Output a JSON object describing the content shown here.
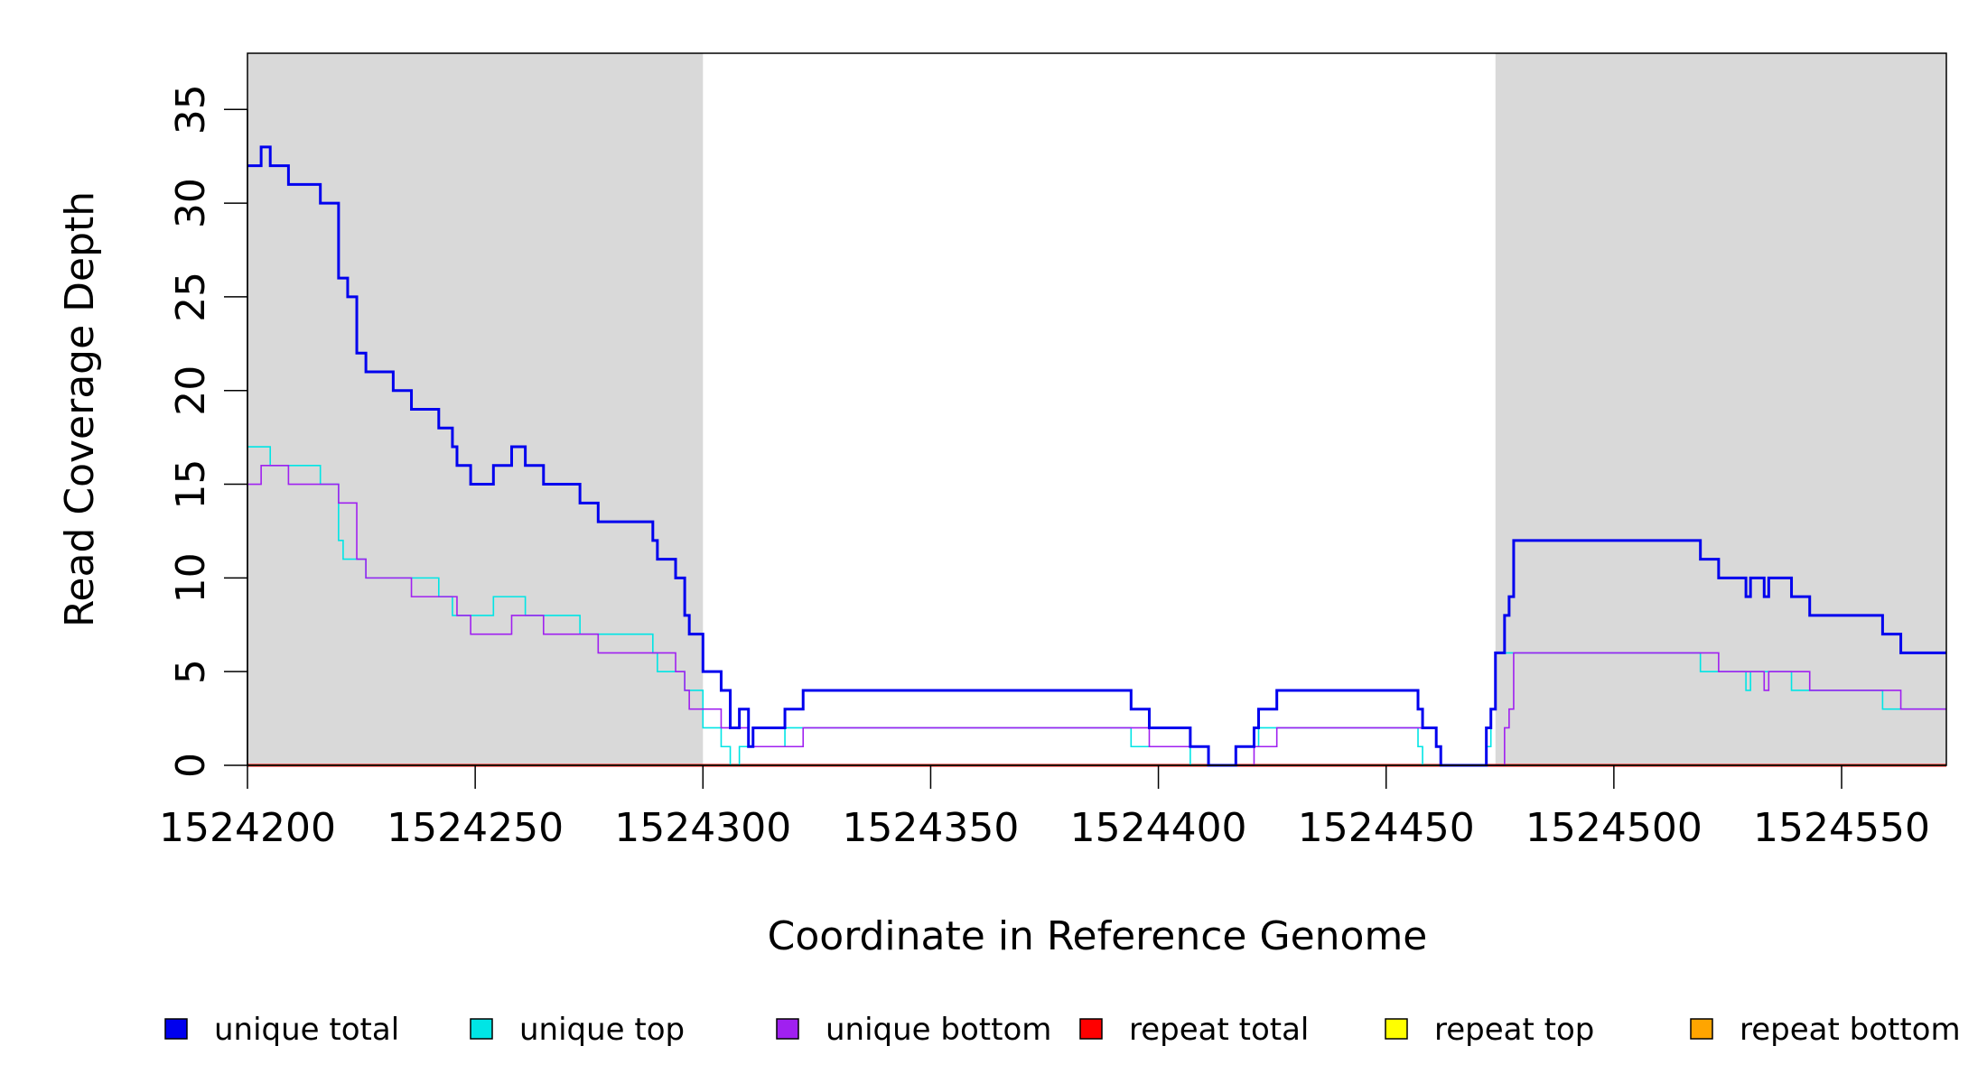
{
  "chart_data": {
    "type": "line",
    "title": "",
    "xlabel": "Coordinate in Reference Genome",
    "ylabel": "Read Coverage Depth",
    "xlim": [
      1524200,
      1524573
    ],
    "ylim": [
      0,
      38
    ],
    "x_ticks": [
      1524200,
      1524250,
      1524300,
      1524350,
      1524400,
      1524450,
      1524500,
      1524550
    ],
    "x_tick_labels": [
      "1524200",
      "1524250",
      "1524300",
      "1524350",
      "1524400",
      "1524450",
      "1524500",
      "1524550"
    ],
    "y_ticks": [
      0,
      5,
      10,
      15,
      20,
      25,
      30,
      35
    ],
    "y_tick_labels": [
      "0",
      "5",
      "10",
      "15",
      "20",
      "25",
      "30",
      "35"
    ],
    "shaded_regions": [
      {
        "x_start": 1524200,
        "x_end": 1524300,
        "color": "#d9d9d9"
      },
      {
        "x_start": 1524474,
        "x_end": 1524573,
        "color": "#d9d9d9"
      }
    ],
    "legend_position": "bottom",
    "series": [
      {
        "name": "unique total",
        "color": "#0000ee",
        "width": 3,
        "step": true,
        "points": [
          [
            1524200,
            32
          ],
          [
            1524203,
            33
          ],
          [
            1524205,
            32
          ],
          [
            1524209,
            31
          ],
          [
            1524216,
            30
          ],
          [
            1524220,
            26
          ],
          [
            1524222,
            25
          ],
          [
            1524224,
            22
          ],
          [
            1524226,
            21
          ],
          [
            1524232,
            20
          ],
          [
            1524236,
            19
          ],
          [
            1524242,
            18
          ],
          [
            1524245,
            17
          ],
          [
            1524246,
            16
          ],
          [
            1524249,
            15
          ],
          [
            1524254,
            16
          ],
          [
            1524258,
            17
          ],
          [
            1524261,
            16
          ],
          [
            1524265,
            15
          ],
          [
            1524273,
            14
          ],
          [
            1524277,
            13
          ],
          [
            1524289,
            12
          ],
          [
            1524290,
            11
          ],
          [
            1524294,
            10
          ],
          [
            1524296,
            8
          ],
          [
            1524297,
            7
          ],
          [
            1524300,
            5
          ],
          [
            1524304,
            4
          ],
          [
            1524306,
            2
          ],
          [
            1524308,
            3
          ],
          [
            1524310,
            1
          ],
          [
            1524311,
            2
          ],
          [
            1524318,
            3
          ],
          [
            1524322,
            4
          ],
          [
            1524394,
            3
          ],
          [
            1524398,
            2
          ],
          [
            1524407,
            1
          ],
          [
            1524411,
            0
          ],
          [
            1524417,
            1
          ],
          [
            1524421,
            2
          ],
          [
            1524422,
            3
          ],
          [
            1524426,
            4
          ],
          [
            1524457,
            3
          ],
          [
            1524458,
            2
          ],
          [
            1524461,
            1
          ],
          [
            1524462,
            0
          ],
          [
            1524472,
            2
          ],
          [
            1524473,
            3
          ],
          [
            1524474,
            6
          ],
          [
            1524476,
            8
          ],
          [
            1524477,
            9
          ],
          [
            1524478,
            12
          ],
          [
            1524519,
            11
          ],
          [
            1524523,
            10
          ],
          [
            1524529,
            9
          ],
          [
            1524530,
            10
          ],
          [
            1524533,
            9
          ],
          [
            1524534,
            10
          ],
          [
            1524539,
            9
          ],
          [
            1524543,
            8
          ],
          [
            1524559,
            7
          ],
          [
            1524563,
            6
          ],
          [
            1524573,
            6
          ]
        ]
      },
      {
        "name": "unique top",
        "color": "#00e5e5",
        "width": 1.6,
        "step": true,
        "points": [
          [
            1524200,
            17
          ],
          [
            1524205,
            16
          ],
          [
            1524216,
            15
          ],
          [
            1524220,
            12
          ],
          [
            1524221,
            11
          ],
          [
            1524224,
            11
          ],
          [
            1524226,
            10
          ],
          [
            1524232,
            10
          ],
          [
            1524236,
            10
          ],
          [
            1524242,
            9
          ],
          [
            1524245,
            8
          ],
          [
            1524246,
            8
          ],
          [
            1524249,
            8
          ],
          [
            1524254,
            9
          ],
          [
            1524258,
            9
          ],
          [
            1524261,
            8
          ],
          [
            1524273,
            7
          ],
          [
            1524277,
            7
          ],
          [
            1524289,
            6
          ],
          [
            1524290,
            5
          ],
          [
            1524294,
            5
          ],
          [
            1524296,
            4
          ],
          [
            1524297,
            4
          ],
          [
            1524300,
            2
          ],
          [
            1524304,
            1
          ],
          [
            1524306,
            0
          ],
          [
            1524308,
            1
          ],
          [
            1524318,
            2
          ],
          [
            1524322,
            2
          ],
          [
            1524394,
            1
          ],
          [
            1524398,
            1
          ],
          [
            1524407,
            0
          ],
          [
            1524411,
            0
          ],
          [
            1524417,
            1
          ],
          [
            1524421,
            1
          ],
          [
            1524422,
            2
          ],
          [
            1524426,
            2
          ],
          [
            1524457,
            1
          ],
          [
            1524458,
            0
          ],
          [
            1524462,
            0
          ],
          [
            1524472,
            1
          ],
          [
            1524473,
            3
          ],
          [
            1524474,
            6
          ],
          [
            1524476,
            6
          ],
          [
            1524519,
            5
          ],
          [
            1524523,
            5
          ],
          [
            1524529,
            4
          ],
          [
            1524530,
            5
          ],
          [
            1524533,
            5
          ],
          [
            1524539,
            4
          ],
          [
            1524543,
            4
          ],
          [
            1524559,
            3
          ],
          [
            1524563,
            3
          ],
          [
            1524573,
            3
          ]
        ]
      },
      {
        "name": "unique bottom",
        "color": "#a020f0",
        "width": 1.6,
        "step": true,
        "points": [
          [
            1524200,
            15
          ],
          [
            1524203,
            16
          ],
          [
            1524209,
            15
          ],
          [
            1524220,
            14
          ],
          [
            1524224,
            11
          ],
          [
            1524226,
            10
          ],
          [
            1524232,
            10
          ],
          [
            1524236,
            9
          ],
          [
            1524242,
            9
          ],
          [
            1524246,
            8
          ],
          [
            1524249,
            7
          ],
          [
            1524254,
            7
          ],
          [
            1524258,
            8
          ],
          [
            1524265,
            7
          ],
          [
            1524273,
            7
          ],
          [
            1524277,
            6
          ],
          [
            1524289,
            6
          ],
          [
            1524294,
            5
          ],
          [
            1524296,
            4
          ],
          [
            1524297,
            3
          ],
          [
            1524304,
            2
          ],
          [
            1524306,
            2
          ],
          [
            1524308,
            2
          ],
          [
            1524310,
            1
          ],
          [
            1524311,
            1
          ],
          [
            1524318,
            1
          ],
          [
            1524322,
            2
          ],
          [
            1524394,
            2
          ],
          [
            1524398,
            1
          ],
          [
            1524407,
            1
          ],
          [
            1524411,
            0
          ],
          [
            1524417,
            0
          ],
          [
            1524421,
            1
          ],
          [
            1524426,
            2
          ],
          [
            1524457,
            2
          ],
          [
            1524458,
            2
          ],
          [
            1524461,
            1
          ],
          [
            1524462,
            0
          ],
          [
            1524472,
            0
          ],
          [
            1524474,
            0
          ],
          [
            1524476,
            2
          ],
          [
            1524477,
            3
          ],
          [
            1524478,
            6
          ],
          [
            1524519,
            6
          ],
          [
            1524523,
            5
          ],
          [
            1524533,
            4
          ],
          [
            1524534,
            5
          ],
          [
            1524543,
            4
          ],
          [
            1524559,
            4
          ],
          [
            1524563,
            3
          ],
          [
            1524573,
            3
          ]
        ]
      },
      {
        "name": "repeat total",
        "color": "#ff0000",
        "width": 3,
        "step": true,
        "points": [
          [
            1524200,
            0
          ],
          [
            1524573,
            0
          ]
        ]
      },
      {
        "name": "repeat top",
        "color": "#ffff00",
        "width": 1.6,
        "step": true,
        "points": [
          [
            1524200,
            0
          ],
          [
            1524573,
            0
          ]
        ]
      },
      {
        "name": "repeat bottom",
        "color": "#ffa500",
        "width": 1.6,
        "step": true,
        "points": [
          [
            1524200,
            0
          ],
          [
            1524573,
            0
          ]
        ]
      }
    ]
  }
}
